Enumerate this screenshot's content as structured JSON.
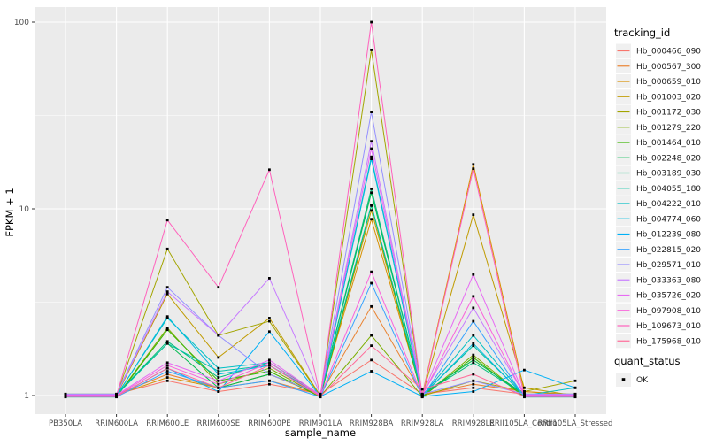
{
  "figure": {
    "y_axis_title": "FPKM + 1",
    "x_axis_title": "sample_name",
    "y_tick_labels": [
      "1",
      "10",
      "100"
    ],
    "colors": {
      "panel_bg": "#EBEBEB",
      "grid": "#FFFFFF",
      "axis_text": "#4D4D4D",
      "tick_mark": "#333333",
      "legend_key_bg": "#F0F0F0",
      "point": "#000000",
      "title_text": "#000000"
    }
  },
  "legend": {
    "tracking_title": "tracking_id",
    "quant_title": "quant_status",
    "quant_items": [
      {
        "label": "OK"
      }
    ]
  },
  "chart_data": {
    "type": "line",
    "log_y": true,
    "title": "",
    "xlabel": "sample_name",
    "ylabel": "FPKM + 1",
    "ylim": [
      1,
      110
    ],
    "y_ticks": [
      1,
      10,
      100
    ],
    "y_minor_ticks": [
      3.1623,
      31.623
    ],
    "legend_position": "right",
    "grid": true,
    "point_marker": "small-black-square",
    "categories": [
      "PB350LA",
      "RRIM600LA",
      "RRIM600LE",
      "RRIM600SE",
      "RRIM600PE",
      "RRIM901LA",
      "RRIM928BA",
      "RRIM928LA",
      "RRIM928LE",
      "RRII105LA_Control",
      "RRII105LA_Stressed"
    ],
    "series": [
      {
        "name": "Hb_000466_090",
        "color": "#F8766D",
        "values": [
          1,
          1,
          1.2,
          1.05,
          1.15,
          1,
          1.55,
          1,
          1.1,
          1,
          1
        ]
      },
      {
        "name": "Hb_000567_300",
        "color": "#EA8331",
        "values": [
          1,
          1,
          1.3,
          1.1,
          1.2,
          1,
          3.0,
          1,
          1.15,
          1.05,
          1
        ]
      },
      {
        "name": "Hb_000659_010",
        "color": "#D89000",
        "values": [
          1,
          1,
          1.25,
          1.1,
          1.3,
          1,
          8.8,
          1,
          17.3,
          1.05,
          1
        ]
      },
      {
        "name": "Hb_001003_020",
        "color": "#C09B00",
        "values": [
          1,
          1,
          3.5,
          1.6,
          2.6,
          1,
          9.8,
          1,
          9.3,
          1.1,
          1
        ]
      },
      {
        "name": "Hb_001172_030",
        "color": "#A3A500",
        "values": [
          1,
          1,
          6.1,
          2.1,
          2.5,
          1,
          71,
          1,
          1.2,
          1.05,
          1.2
        ]
      },
      {
        "name": "Hb_001279_220",
        "color": "#7CAE00",
        "values": [
          1,
          1,
          2.3,
          1.15,
          1.4,
          1,
          2.1,
          1,
          1.65,
          1,
          1
        ]
      },
      {
        "name": "Hb_001464_010",
        "color": "#39B600",
        "values": [
          1,
          1,
          2.25,
          1.2,
          1.35,
          1,
          10.4,
          1,
          1.6,
          1,
          1
        ]
      },
      {
        "name": "Hb_002248_020",
        "color": "#00BB4E",
        "values": [
          1,
          1,
          1.9,
          1.1,
          1.3,
          1,
          12.2,
          1,
          1.55,
          1,
          1
        ]
      },
      {
        "name": "Hb_003189_030",
        "color": "#00BF7D",
        "values": [
          1,
          1,
          1.95,
          1.25,
          1.5,
          1,
          12.8,
          1,
          1.5,
          1,
          1
        ]
      },
      {
        "name": "Hb_004055_180",
        "color": "#00C1A3",
        "values": [
          1,
          1,
          1.9,
          1.35,
          1.45,
          1,
          10.5,
          1,
          1.85,
          1,
          1
        ]
      },
      {
        "name": "Hb_004222_010",
        "color": "#00BFC4",
        "values": [
          1,
          1,
          2.6,
          1.4,
          1.5,
          1,
          19,
          1,
          2.1,
          1,
          1.1
        ]
      },
      {
        "name": "Hb_004774_060",
        "color": "#00BAE0",
        "values": [
          1,
          1,
          2.65,
          1.3,
          1.45,
          1,
          18.5,
          1,
          1.9,
          1,
          1
        ]
      },
      {
        "name": "Hb_012239_080",
        "color": "#00B0F6",
        "values": [
          1,
          1,
          1.4,
          1.05,
          2.2,
          1,
          1.35,
          1,
          1.05,
          1.37,
          1.1
        ]
      },
      {
        "name": "Hb_022815_020",
        "color": "#35A2FF",
        "values": [
          1,
          1,
          1.35,
          1.1,
          1.2,
          1,
          4.0,
          1,
          2.5,
          1,
          1
        ]
      },
      {
        "name": "Hb_029571_010",
        "color": "#9590FF",
        "values": [
          1,
          1,
          3.8,
          2.1,
          1.3,
          1,
          33,
          1,
          1.2,
          1,
          1
        ]
      },
      {
        "name": "Hb_033363_080",
        "color": "#C77CFF",
        "values": [
          1,
          1,
          3.6,
          2.1,
          4.25,
          1,
          23,
          1,
          2.95,
          1,
          1
        ]
      },
      {
        "name": "Hb_035726_020",
        "color": "#E76BF3",
        "values": [
          1,
          1,
          1.5,
          1.2,
          1.55,
          1,
          21,
          1,
          4.45,
          1,
          1
        ]
      },
      {
        "name": "Hb_097908_010",
        "color": "#FA62DB",
        "values": [
          1,
          1,
          1.45,
          1.15,
          1.5,
          1,
          4.6,
          1,
          3.4,
          1,
          1
        ]
      },
      {
        "name": "Hb_109673_010",
        "color": "#FF62BC",
        "values": [
          1,
          1,
          8.7,
          3.8,
          16.2,
          1,
          100,
          1,
          16.4,
          1,
          1
        ]
      },
      {
        "name": "Hb_175968_010",
        "color": "#FF6A98",
        "values": [
          1,
          1,
          1.4,
          1.1,
          1.45,
          1,
          1.85,
          1.08,
          1.3,
          1,
          1
        ]
      }
    ]
  }
}
